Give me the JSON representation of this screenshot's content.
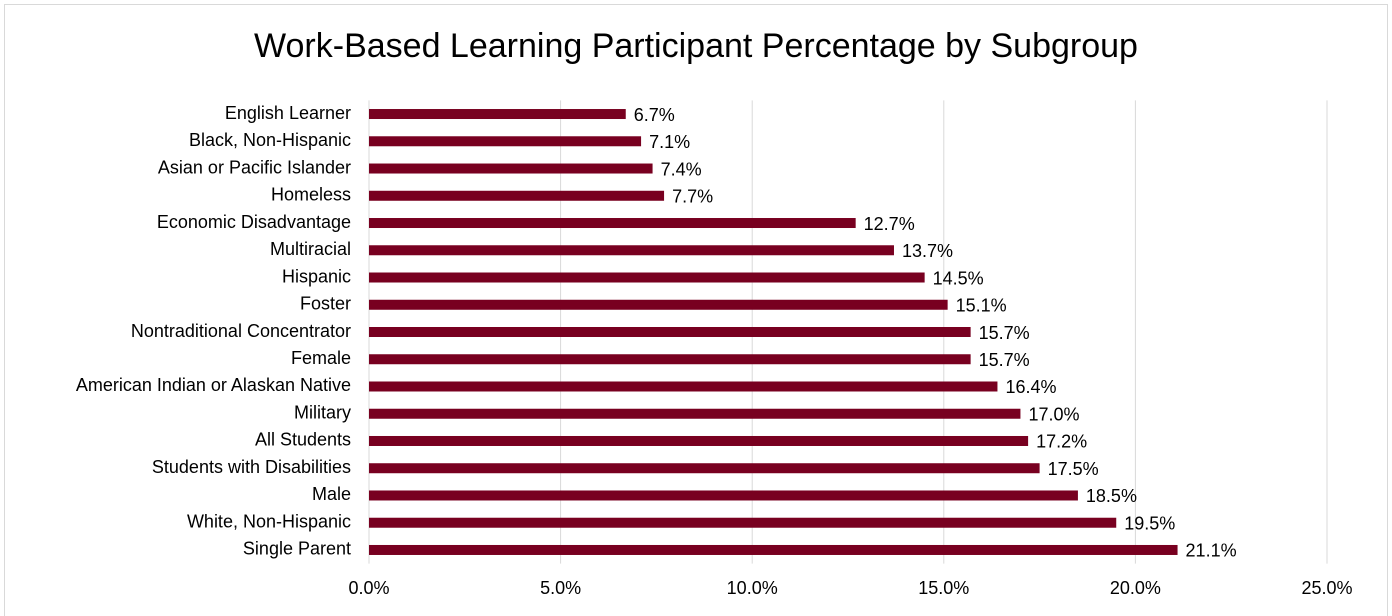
{
  "chart_data": {
    "type": "hbar",
    "title": "Work-Based Learning Participant Percentage by Subgroup",
    "categories": [
      "English Learner",
      "Black, Non-Hispanic",
      "Asian or Pacific Islander",
      "Homeless",
      "Economic Disadvantage",
      "Multiracial",
      "Hispanic",
      "Foster",
      "Nontraditional Concentrator",
      "Female",
      "American Indian or Alaskan Native",
      "Military",
      "All Students",
      "Students with Disabilities",
      "Male",
      "White, Non-Hispanic",
      "Single Parent"
    ],
    "values": [
      6.7,
      7.1,
      7.4,
      7.7,
      12.7,
      13.7,
      14.5,
      15.1,
      15.7,
      15.7,
      16.4,
      17.0,
      17.2,
      17.5,
      18.5,
      19.5,
      21.1
    ],
    "value_labels": [
      "6.7%",
      "7.1%",
      "7.4%",
      "7.7%",
      "12.7%",
      "13.7%",
      "14.5%",
      "15.1%",
      "15.7%",
      "15.7%",
      "16.4%",
      "17.0%",
      "17.2%",
      "17.5%",
      "18.5%",
      "19.5%",
      "21.1%"
    ],
    "color": "#780020",
    "xlim": [
      0,
      25
    ],
    "xticks": [
      {
        "value": 0,
        "label": "0.0%"
      },
      {
        "value": 5,
        "label": "5.0%"
      },
      {
        "value": 10,
        "label": "10.0%"
      },
      {
        "value": 15,
        "label": "15.0%"
      },
      {
        "value": 20,
        "label": "20.0%"
      },
      {
        "value": 25,
        "label": "25.0%"
      }
    ],
    "grid": true
  }
}
